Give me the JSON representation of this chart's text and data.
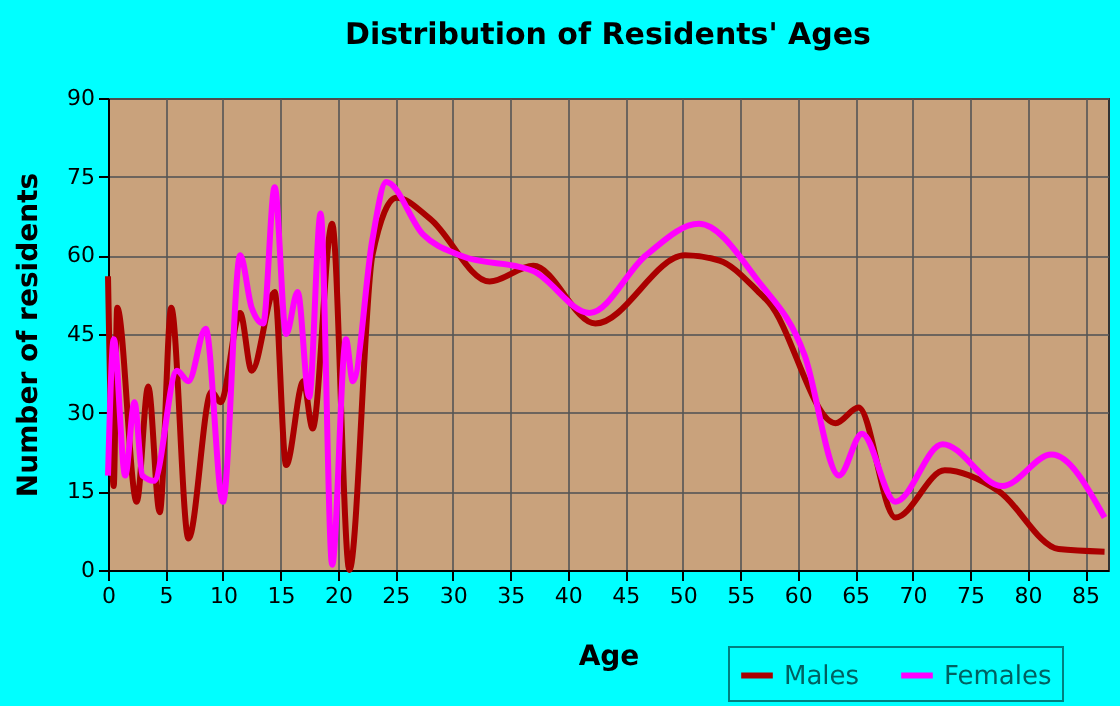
{
  "chart_data": {
    "type": "line",
    "title": "Distribution of Residents' Ages",
    "xlabel": "Age",
    "ylabel": "Number of residents",
    "xlim": [
      0,
      87
    ],
    "xticks": [
      0,
      5,
      10,
      15,
      20,
      25,
      30,
      35,
      40,
      45,
      50,
      55,
      60,
      65,
      70,
      75,
      80,
      85
    ],
    "ylim": [
      0,
      90
    ],
    "yticks": [
      0,
      15,
      30,
      45,
      60,
      75,
      90
    ],
    "grid": true,
    "legend": "bottom",
    "marker": "none",
    "line_style": "solid",
    "series": [
      {
        "name": "Males",
        "color": "#aa0000",
        "x": [
          0,
          0.5,
          0.8,
          2.5,
          3.5,
          4.5,
          5.5,
          7,
          9,
          9.8,
          11.5,
          12.5,
          14.5,
          15.5,
          17,
          17.8,
          19.5,
          21,
          23,
          25.1,
          28,
          33.2,
          37,
          42.4,
          50.2,
          53.2,
          56.6,
          57.5,
          63.3,
          65.3,
          68.5,
          72.8,
          77.5,
          82.7,
          86.7
        ],
        "values": [
          56,
          16,
          50,
          13,
          35,
          11,
          50,
          6,
          34,
          32,
          49,
          38,
          53,
          20,
          36,
          27,
          66,
          0,
          60,
          71,
          67,
          55,
          58,
          47,
          60,
          59,
          53,
          51,
          28,
          31,
          10,
          19,
          15,
          4,
          3.5
        ]
      },
      {
        "name": "Females",
        "color": "#ff00ff",
        "x": [
          0,
          0.5,
          1.5,
          2.3,
          3,
          4,
          6,
          7,
          8.5,
          10,
          11.5,
          12.5,
          13.5,
          14.5,
          15.5,
          16.5,
          17.5,
          18.5,
          19.5,
          20.7,
          21.3,
          23,
          24.2,
          27.4,
          30.6,
          37,
          41.9,
          46.8,
          51.4,
          56.6,
          60.6,
          63.6,
          65.6,
          68.5,
          72.6,
          77.8,
          82.1,
          86.7
        ],
        "values": [
          18,
          44,
          18,
          32,
          18,
          17,
          38,
          36,
          46,
          13,
          60,
          50,
          47,
          73,
          45,
          53,
          33,
          68,
          1,
          44,
          36,
          63,
          74,
          64,
          60,
          57,
          49,
          60,
          66,
          55,
          41,
          18,
          26,
          13,
          24,
          16,
          22,
          10
        ]
      }
    ]
  }
}
